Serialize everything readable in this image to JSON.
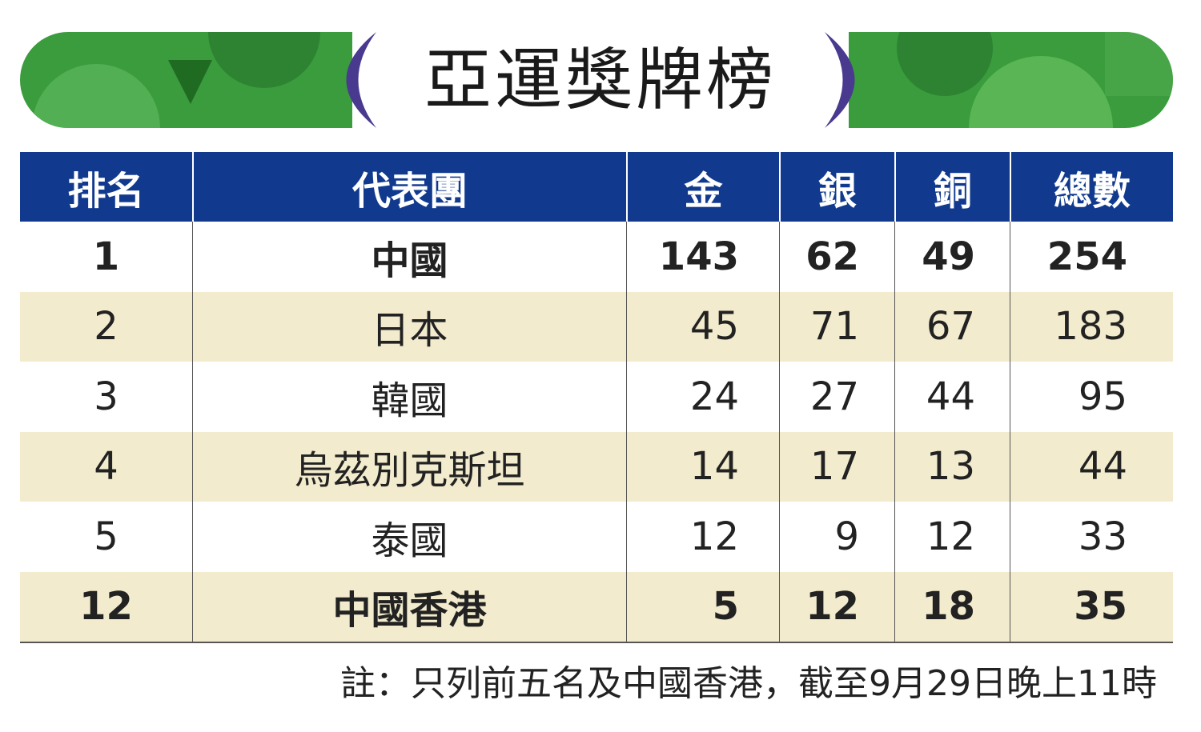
{
  "header": {
    "title": "亞運獎牌榜"
  },
  "table": {
    "columns": [
      "排名",
      "代表團",
      "金",
      "銀",
      "銅",
      "總數"
    ],
    "rows": [
      [
        1,
        "中國",
        143,
        62,
        49,
        254
      ],
      [
        2,
        "日本",
        45,
        71,
        67,
        183
      ],
      [
        3,
        "韓國",
        24,
        27,
        44,
        95
      ],
      [
        4,
        "烏茲別克斯坦",
        14,
        17,
        13,
        44
      ],
      [
        5,
        "泰國",
        12,
        9,
        12,
        33
      ],
      [
        12,
        "中國香港",
        5,
        12,
        18,
        35
      ]
    ]
  },
  "note": "註：只列前五名及中國香港，截至9月29日晚上11時"
}
